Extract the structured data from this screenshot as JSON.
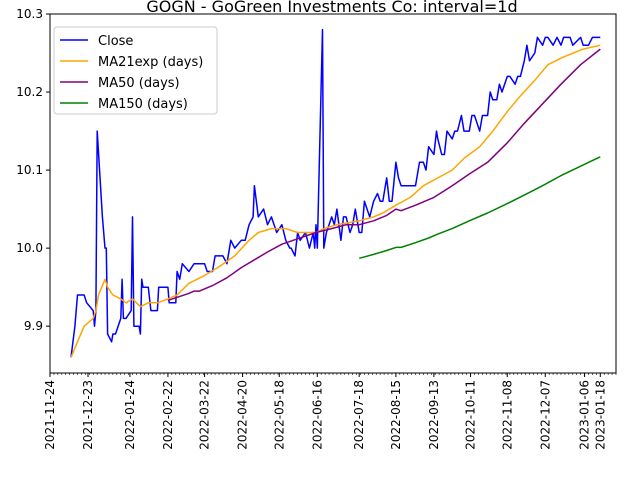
{
  "chart_data": {
    "type": "line",
    "title": "GOGN - GoGreen Investments Co: interval=1d",
    "xlabel": "",
    "ylabel": "",
    "x_ticks": [
      "2021-11-24",
      "2021-12-23",
      "2022-01-24",
      "2022-02-22",
      "2022-03-22",
      "2022-04-20",
      "2022-05-18",
      "2022-06-16",
      "2022-07-18",
      "2022-08-15",
      "2022-09-13",
      "2022-10-11",
      "2022-11-08",
      "2022-12-07",
      "2023-01-06",
      "2023-01-18"
    ],
    "x_tick_labels": [
      "2021-11-24",
      "2021-12-23",
      "2022-01-24",
      "2022-02-22",
      "2022-03-22",
      "2022-04-20",
      "2022-05-18",
      "2022-06-16",
      "2022-07-18",
      "2022-08-15",
      "2022-09-13",
      "2022-10-11",
      "2022-11-08",
      "2022-12-07",
      "2023-01-06",
      "2023-01-18"
    ],
    "xlim": [
      "2021-11-24",
      "2023-01-30"
    ],
    "y_ticks": [
      9.9,
      10.0,
      10.1,
      10.2,
      10.3
    ],
    "y_tick_labels": [
      "9.9",
      "10.0",
      "10.1",
      "10.2",
      "10.3"
    ],
    "ylim": [
      9.84,
      10.3
    ],
    "grid": false,
    "legend": {
      "position": "top-left"
    },
    "series": [
      {
        "name": "Close",
        "color": "#0000ff",
        "points": [
          [
            "2021-12-10",
            9.86
          ],
          [
            "2021-12-13",
            9.9
          ],
          [
            "2021-12-15",
            9.94
          ],
          [
            "2021-12-20",
            9.94
          ],
          [
            "2021-12-22",
            9.93
          ],
          [
            "2021-12-27",
            9.92
          ],
          [
            "2021-12-28",
            9.9
          ],
          [
            "2021-12-29",
            9.92
          ],
          [
            "2021-12-30",
            10.15
          ],
          [
            "2022-01-03",
            10.04
          ],
          [
            "2022-01-05",
            10.0
          ],
          [
            "2022-01-06",
            10.0
          ],
          [
            "2022-01-07",
            9.89
          ],
          [
            "2022-01-10",
            9.88
          ],
          [
            "2022-01-11",
            9.89
          ],
          [
            "2022-01-13",
            9.89
          ],
          [
            "2022-01-17",
            9.91
          ],
          [
            "2022-01-18",
            9.96
          ],
          [
            "2022-01-19",
            9.91
          ],
          [
            "2022-01-21",
            9.91
          ],
          [
            "2022-01-25",
            9.92
          ],
          [
            "2022-01-26",
            10.04
          ],
          [
            "2022-01-27",
            9.9
          ],
          [
            "2022-01-28",
            9.9
          ],
          [
            "2022-01-31",
            9.9
          ],
          [
            "2022-02-01",
            9.89
          ],
          [
            "2022-02-02",
            9.96
          ],
          [
            "2022-02-03",
            9.95
          ],
          [
            "2022-02-07",
            9.95
          ],
          [
            "2022-02-09",
            9.92
          ],
          [
            "2022-02-14",
            9.92
          ],
          [
            "2022-02-15",
            9.95
          ],
          [
            "2022-02-22",
            9.95
          ],
          [
            "2022-02-23",
            9.93
          ],
          [
            "2022-02-28",
            9.93
          ],
          [
            "2022-03-01",
            9.97
          ],
          [
            "2022-03-03",
            9.96
          ],
          [
            "2022-03-05",
            9.98
          ],
          [
            "2022-03-10",
            9.97
          ],
          [
            "2022-03-14",
            9.98
          ],
          [
            "2022-03-22",
            9.98
          ],
          [
            "2022-03-24",
            9.97
          ],
          [
            "2022-03-28",
            9.97
          ],
          [
            "2022-03-30",
            9.99
          ],
          [
            "2022-04-05",
            9.99
          ],
          [
            "2022-04-08",
            9.98
          ],
          [
            "2022-04-11",
            10.01
          ],
          [
            "2022-04-14",
            10.0
          ],
          [
            "2022-04-19",
            10.01
          ],
          [
            "2022-04-22",
            10.01
          ],
          [
            "2022-04-25",
            10.03
          ],
          [
            "2022-04-28",
            10.04
          ],
          [
            "2022-04-29",
            10.08
          ],
          [
            "2022-05-02",
            10.04
          ],
          [
            "2022-05-06",
            10.05
          ],
          [
            "2022-05-09",
            10.03
          ],
          [
            "2022-05-12",
            10.04
          ],
          [
            "2022-05-16",
            10.02
          ],
          [
            "2022-05-20",
            10.03
          ],
          [
            "2022-05-23",
            10.01
          ],
          [
            "2022-05-26",
            10.0
          ],
          [
            "2022-05-27",
            10.0
          ],
          [
            "2022-05-30",
            9.99
          ],
          [
            "2022-06-01",
            10.02
          ],
          [
            "2022-06-03",
            10.01
          ],
          [
            "2022-06-07",
            10.02
          ],
          [
            "2022-06-10",
            10.0
          ],
          [
            "2022-06-13",
            10.02
          ],
          [
            "2022-06-14",
            10.0
          ],
          [
            "2022-06-15",
            10.03
          ],
          [
            "2022-06-16",
            10.0
          ],
          [
            "2022-06-20",
            10.28
          ],
          [
            "2022-06-21",
            10.0
          ],
          [
            "2022-06-23",
            10.02
          ],
          [
            "2022-06-27",
            10.04
          ],
          [
            "2022-06-29",
            10.03
          ],
          [
            "2022-07-01",
            10.05
          ],
          [
            "2022-07-04",
            10.01
          ],
          [
            "2022-07-06",
            10.04
          ],
          [
            "2022-07-08",
            10.04
          ],
          [
            "2022-07-11",
            10.02
          ],
          [
            "2022-07-13",
            10.03
          ],
          [
            "2022-07-15",
            10.05
          ],
          [
            "2022-07-18",
            10.02
          ],
          [
            "2022-07-20",
            10.02
          ],
          [
            "2022-07-22",
            10.06
          ],
          [
            "2022-07-26",
            10.04
          ],
          [
            "2022-07-29",
            10.06
          ],
          [
            "2022-08-01",
            10.07
          ],
          [
            "2022-08-03",
            10.06
          ],
          [
            "2022-08-05",
            10.06
          ],
          [
            "2022-08-08",
            10.09
          ],
          [
            "2022-08-10",
            10.06
          ],
          [
            "2022-08-12",
            10.06
          ],
          [
            "2022-08-15",
            10.11
          ],
          [
            "2022-08-17",
            10.09
          ],
          [
            "2022-08-19",
            10.08
          ],
          [
            "2022-08-22",
            10.08
          ],
          [
            "2022-08-26",
            10.08
          ],
          [
            "2022-08-30",
            10.08
          ],
          [
            "2022-09-02",
            10.11
          ],
          [
            "2022-09-05",
            10.11
          ],
          [
            "2022-09-07",
            10.1
          ],
          [
            "2022-09-09",
            10.13
          ],
          [
            "2022-09-13",
            10.12
          ],
          [
            "2022-09-15",
            10.15
          ],
          [
            "2022-09-16",
            10.14
          ],
          [
            "2022-09-19",
            10.12
          ],
          [
            "2022-09-21",
            10.12
          ],
          [
            "2022-09-23",
            10.15
          ],
          [
            "2022-09-27",
            10.14
          ],
          [
            "2022-09-29",
            10.15
          ],
          [
            "2022-10-01",
            10.15
          ],
          [
            "2022-10-04",
            10.17
          ],
          [
            "2022-10-06",
            10.15
          ],
          [
            "2022-10-10",
            10.15
          ],
          [
            "2022-10-12",
            10.17
          ],
          [
            "2022-10-14",
            10.17
          ],
          [
            "2022-10-18",
            10.15
          ],
          [
            "2022-10-20",
            10.17
          ],
          [
            "2022-10-24",
            10.17
          ],
          [
            "2022-10-26",
            10.2
          ],
          [
            "2022-10-28",
            10.19
          ],
          [
            "2022-10-31",
            10.19
          ],
          [
            "2022-11-02",
            10.21
          ],
          [
            "2022-11-04",
            10.2
          ],
          [
            "2022-11-08",
            10.22
          ],
          [
            "2022-11-10",
            10.22
          ],
          [
            "2022-11-14",
            10.21
          ],
          [
            "2022-11-16",
            10.22
          ],
          [
            "2022-11-18",
            10.22
          ],
          [
            "2022-11-21",
            10.24
          ],
          [
            "2022-11-23",
            10.26
          ],
          [
            "2022-11-25",
            10.24
          ],
          [
            "2022-11-29",
            10.25
          ],
          [
            "2022-12-01",
            10.27
          ],
          [
            "2022-12-05",
            10.26
          ],
          [
            "2022-12-07",
            10.27
          ],
          [
            "2022-12-09",
            10.27
          ],
          [
            "2022-12-13",
            10.26
          ],
          [
            "2022-12-16",
            10.27
          ],
          [
            "2022-12-19",
            10.26
          ],
          [
            "2022-12-21",
            10.27
          ],
          [
            "2022-12-26",
            10.27
          ],
          [
            "2022-12-28",
            10.26
          ],
          [
            "2023-01-03",
            10.27
          ],
          [
            "2023-01-05",
            10.26
          ],
          [
            "2023-01-09",
            10.26
          ],
          [
            "2023-01-12",
            10.27
          ],
          [
            "2023-01-18",
            10.27
          ]
        ]
      },
      {
        "name": "MA21exp (days)",
        "color": "#ffa500",
        "points": [
          [
            "2021-12-10",
            9.86
          ],
          [
            "2021-12-15",
            9.88
          ],
          [
            "2021-12-20",
            9.9
          ],
          [
            "2021-12-27",
            9.91
          ],
          [
            "2021-12-29",
            9.92
          ],
          [
            "2021-12-31",
            9.94
          ],
          [
            "2022-01-05",
            9.96
          ],
          [
            "2022-01-07",
            9.95
          ],
          [
            "2022-01-11",
            9.94
          ],
          [
            "2022-01-17",
            9.935
          ],
          [
            "2022-01-21",
            9.93
          ],
          [
            "2022-01-26",
            9.935
          ],
          [
            "2022-02-01",
            9.925
          ],
          [
            "2022-02-07",
            9.93
          ],
          [
            "2022-02-14",
            9.93
          ],
          [
            "2022-02-22",
            9.935
          ],
          [
            "2022-03-01",
            9.94
          ],
          [
            "2022-03-10",
            9.955
          ],
          [
            "2022-03-22",
            9.965
          ],
          [
            "2022-04-01",
            9.975
          ],
          [
            "2022-04-14",
            9.99
          ],
          [
            "2022-04-25",
            10.01
          ],
          [
            "2022-05-02",
            10.02
          ],
          [
            "2022-05-12",
            10.025
          ],
          [
            "2022-05-23",
            10.025
          ],
          [
            "2022-06-01",
            10.02
          ],
          [
            "2022-06-15",
            10.02
          ],
          [
            "2022-06-21",
            10.025
          ],
          [
            "2022-07-01",
            10.03
          ],
          [
            "2022-07-18",
            10.035
          ],
          [
            "2022-07-29",
            10.04
          ],
          [
            "2022-08-05",
            10.045
          ],
          [
            "2022-08-15",
            10.055
          ],
          [
            "2022-08-26",
            10.065
          ],
          [
            "2022-09-05",
            10.08
          ],
          [
            "2022-09-16",
            10.09
          ],
          [
            "2022-09-27",
            10.1
          ],
          [
            "2022-10-06",
            10.115
          ],
          [
            "2022-10-18",
            10.13
          ],
          [
            "2022-10-28",
            10.15
          ],
          [
            "2022-11-08",
            10.175
          ],
          [
            "2022-11-18",
            10.195
          ],
          [
            "2022-11-29",
            10.215
          ],
          [
            "2022-12-09",
            10.235
          ],
          [
            "2022-12-21",
            10.245
          ],
          [
            "2023-01-05",
            10.255
          ],
          [
            "2023-01-18",
            10.26
          ]
        ]
      },
      {
        "name": "MA50 (days)",
        "color": "#800080",
        "points": [
          [
            "2022-02-22",
            9.933
          ],
          [
            "2022-03-01",
            9.937
          ],
          [
            "2022-03-10",
            9.942
          ],
          [
            "2022-03-14",
            9.945
          ],
          [
            "2022-03-18",
            9.945
          ],
          [
            "2022-03-28",
            9.952
          ],
          [
            "2022-04-08",
            9.962
          ],
          [
            "2022-04-19",
            9.975
          ],
          [
            "2022-04-29",
            9.985
          ],
          [
            "2022-05-09",
            9.995
          ],
          [
            "2022-05-20",
            10.005
          ],
          [
            "2022-06-01",
            10.012
          ],
          [
            "2022-06-15",
            10.02
          ],
          [
            "2022-06-27",
            10.025
          ],
          [
            "2022-07-08",
            10.03
          ],
          [
            "2022-07-18",
            10.03
          ],
          [
            "2022-07-29",
            10.035
          ],
          [
            "2022-08-08",
            10.042
          ],
          [
            "2022-08-15",
            10.05
          ],
          [
            "2022-08-19",
            10.048
          ],
          [
            "2022-08-30",
            10.055
          ],
          [
            "2022-09-13",
            10.065
          ],
          [
            "2022-09-27",
            10.08
          ],
          [
            "2022-10-10",
            10.095
          ],
          [
            "2022-10-24",
            10.11
          ],
          [
            "2022-11-08",
            10.135
          ],
          [
            "2022-11-21",
            10.16
          ],
          [
            "2022-12-05",
            10.185
          ],
          [
            "2022-12-19",
            10.21
          ],
          [
            "2023-01-03",
            10.235
          ],
          [
            "2023-01-18",
            10.255
          ]
        ]
      },
      {
        "name": "MA150 (days)",
        "color": "#008000",
        "points": [
          [
            "2022-07-18",
            9.987
          ],
          [
            "2022-07-29",
            9.992
          ],
          [
            "2022-08-08",
            9.997
          ],
          [
            "2022-08-15",
            10.001
          ],
          [
            "2022-08-19",
            10.001
          ],
          [
            "2022-08-30",
            10.007
          ],
          [
            "2022-09-09",
            10.013
          ],
          [
            "2022-09-16",
            10.018
          ],
          [
            "2022-09-27",
            10.025
          ],
          [
            "2022-10-10",
            10.035
          ],
          [
            "2022-10-24",
            10.045
          ],
          [
            "2022-11-08",
            10.057
          ],
          [
            "2022-11-21",
            10.068
          ],
          [
            "2022-12-05",
            10.08
          ],
          [
            "2022-12-19",
            10.093
          ],
          [
            "2023-01-03",
            10.105
          ],
          [
            "2023-01-18",
            10.117
          ]
        ]
      }
    ]
  }
}
